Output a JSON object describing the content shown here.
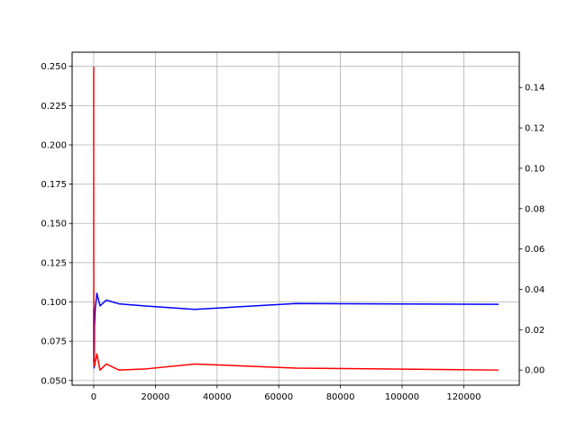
{
  "chart_data": {
    "type": "line",
    "title": "",
    "xlabel": "",
    "ylabel": "",
    "y2label": "",
    "grid": true,
    "xlim": [
      -7000,
      138000
    ],
    "ylim": [
      0.047,
      0.259
    ],
    "y2lim": [
      -0.0075,
      0.1575
    ],
    "x_ticks": [
      0,
      20000,
      40000,
      60000,
      80000,
      100000,
      120000
    ],
    "y_ticks": [
      0.05,
      0.075,
      0.1,
      0.125,
      0.15,
      0.175,
      0.2,
      0.225,
      0.25
    ],
    "y2_ticks": [
      0.0,
      0.02,
      0.04,
      0.06,
      0.08,
      0.1,
      0.12,
      0.14
    ],
    "series": [
      {
        "axis": "left",
        "color": "#0000ff",
        "x": [
          2,
          4,
          8,
          16,
          32,
          64,
          128,
          256,
          512,
          1024,
          2048,
          4096,
          8192,
          16384,
          32768,
          65536,
          131072
        ],
        "y": [
          0.0955,
          0.0715,
          0.062,
          0.068,
          0.065,
          0.0615,
          0.058,
          0.085,
          0.096,
          0.1055,
          0.0975,
          0.1012,
          0.0988,
          0.0975,
          0.0953,
          0.099,
          0.0985
        ]
      },
      {
        "axis": "right",
        "color": "#ff0000",
        "x": [
          2,
          4,
          8,
          16,
          32,
          64,
          128,
          256,
          512,
          1024,
          2048,
          4096,
          8192,
          16384,
          32768,
          65536,
          131072
        ],
        "y": [
          0.15,
          0.11,
          0.06,
          0.04,
          0.02,
          0.01,
          0.003,
          0.002,
          0.004,
          0.008,
          0.0,
          0.003,
          0.0,
          0.0005,
          0.003,
          0.001,
          0.0
        ]
      }
    ]
  }
}
